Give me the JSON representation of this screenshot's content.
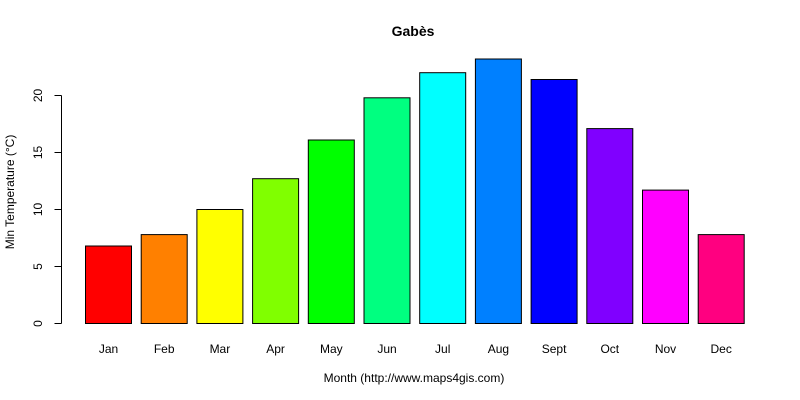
{
  "chart_data": {
    "type": "bar",
    "title": "Gabès",
    "xlabel": "Month (http://www.maps4gis.com)",
    "ylabel": "Min Temperature (°C)",
    "categories": [
      "Jan",
      "Feb",
      "Mar",
      "Apr",
      "May",
      "Jun",
      "Jul",
      "Aug",
      "Sept",
      "Oct",
      "Nov",
      "Dec"
    ],
    "values": [
      6.8,
      7.8,
      10.0,
      12.7,
      16.1,
      19.8,
      22.0,
      23.2,
      21.4,
      17.1,
      11.7,
      7.8
    ],
    "colors": [
      "#FF0000",
      "#FF8000",
      "#FFFF00",
      "#80FF00",
      "#00FF00",
      "#00FF80",
      "#00FFFF",
      "#0080FF",
      "#0000FF",
      "#8000FF",
      "#FF00FF",
      "#FF0080"
    ],
    "yticks": [
      0,
      5,
      10,
      15,
      20
    ],
    "ylim": [
      0,
      23.2
    ],
    "grid": false,
    "legend": "none"
  }
}
